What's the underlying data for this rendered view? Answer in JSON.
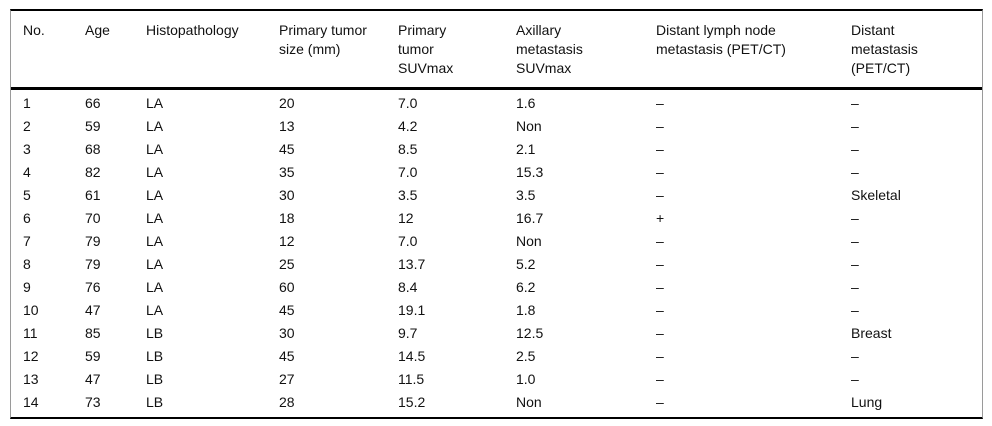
{
  "table": {
    "columns": [
      "No.",
      "Age",
      "Histopathology",
      "Primary tumor\nsize (mm)",
      "Primary\ntumor\nSUVmax",
      "Axillary\nmetastasis\nSUVmax",
      "Distant lymph node\nmetastasis (PET/CT)",
      "Distant\nmetastasis\n(PET/CT)"
    ],
    "rows": [
      [
        "1",
        "66",
        "LA",
        "20",
        "7.0",
        "1.6",
        "–",
        "–"
      ],
      [
        "2",
        "59",
        "LA",
        "13",
        "4.2",
        "Non",
        "–",
        "–"
      ],
      [
        "3",
        "68",
        "LA",
        "45",
        "8.5",
        "2.1",
        "–",
        "–"
      ],
      [
        "4",
        "82",
        "LA",
        "35",
        "7.0",
        "15.3",
        "–",
        "–"
      ],
      [
        "5",
        "61",
        "LA",
        "30",
        "3.5",
        "3.5",
        "–",
        "Skeletal"
      ],
      [
        "6",
        "70",
        "LA",
        "18",
        "12",
        "16.7",
        "+",
        "–"
      ],
      [
        "7",
        "79",
        "LA",
        "12",
        "7.0",
        "Non",
        "–",
        "–"
      ],
      [
        "8",
        "79",
        "LA",
        "25",
        "13.7",
        "5.2",
        "–",
        "–"
      ],
      [
        "9",
        "76",
        "LA",
        "60",
        "8.4",
        "6.2",
        "–",
        "–"
      ],
      [
        "10",
        "47",
        "LA",
        "45",
        "19.1",
        "1.8",
        "–",
        "–"
      ],
      [
        "11",
        "85",
        "LB",
        "30",
        "9.7",
        "12.5",
        "–",
        "Breast"
      ],
      [
        "12",
        "59",
        "LB",
        "45",
        "14.5",
        "2.5",
        "–",
        "–"
      ],
      [
        "13",
        "47",
        "LB",
        "27",
        "11.5",
        "1.0",
        "–",
        "–"
      ],
      [
        "14",
        "73",
        "LB",
        "28",
        "15.2",
        "Non",
        "–",
        "Lung"
      ]
    ]
  },
  "colors": {
    "rule": "#000000",
    "frame_side": "#9a9a9a",
    "text": "#111111",
    "background": "#ffffff"
  }
}
